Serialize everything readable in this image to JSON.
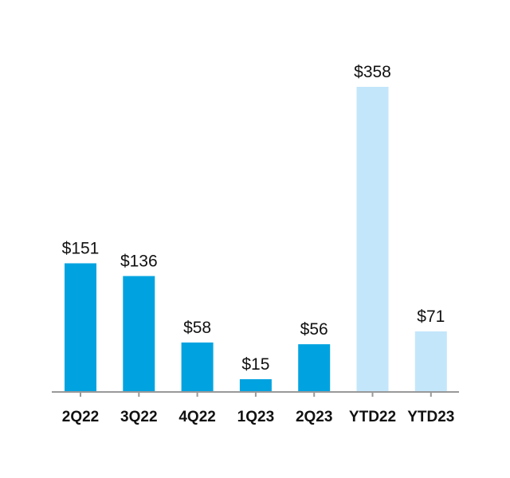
{
  "chart_data": {
    "type": "bar",
    "title": "",
    "xlabel": "",
    "ylabel": "",
    "categories": [
      "2Q22",
      "3Q22",
      "4Q22",
      "1Q23",
      "2Q23",
      "YTD22",
      "YTD23"
    ],
    "values": [
      151,
      136,
      58,
      15,
      56,
      358,
      71
    ],
    "data_labels": [
      "$151",
      "$136",
      "$58",
      "$15",
      "$56",
      "$358",
      "$71"
    ],
    "bar_colors": [
      "#00a3e0",
      "#00a3e0",
      "#00a3e0",
      "#00a3e0",
      "#00a3e0",
      "#c3e6fb",
      "#c3e6fb"
    ],
    "axis_color": "#999999",
    "ylim": [
      0,
      358
    ],
    "grid": false,
    "legend": "none"
  }
}
